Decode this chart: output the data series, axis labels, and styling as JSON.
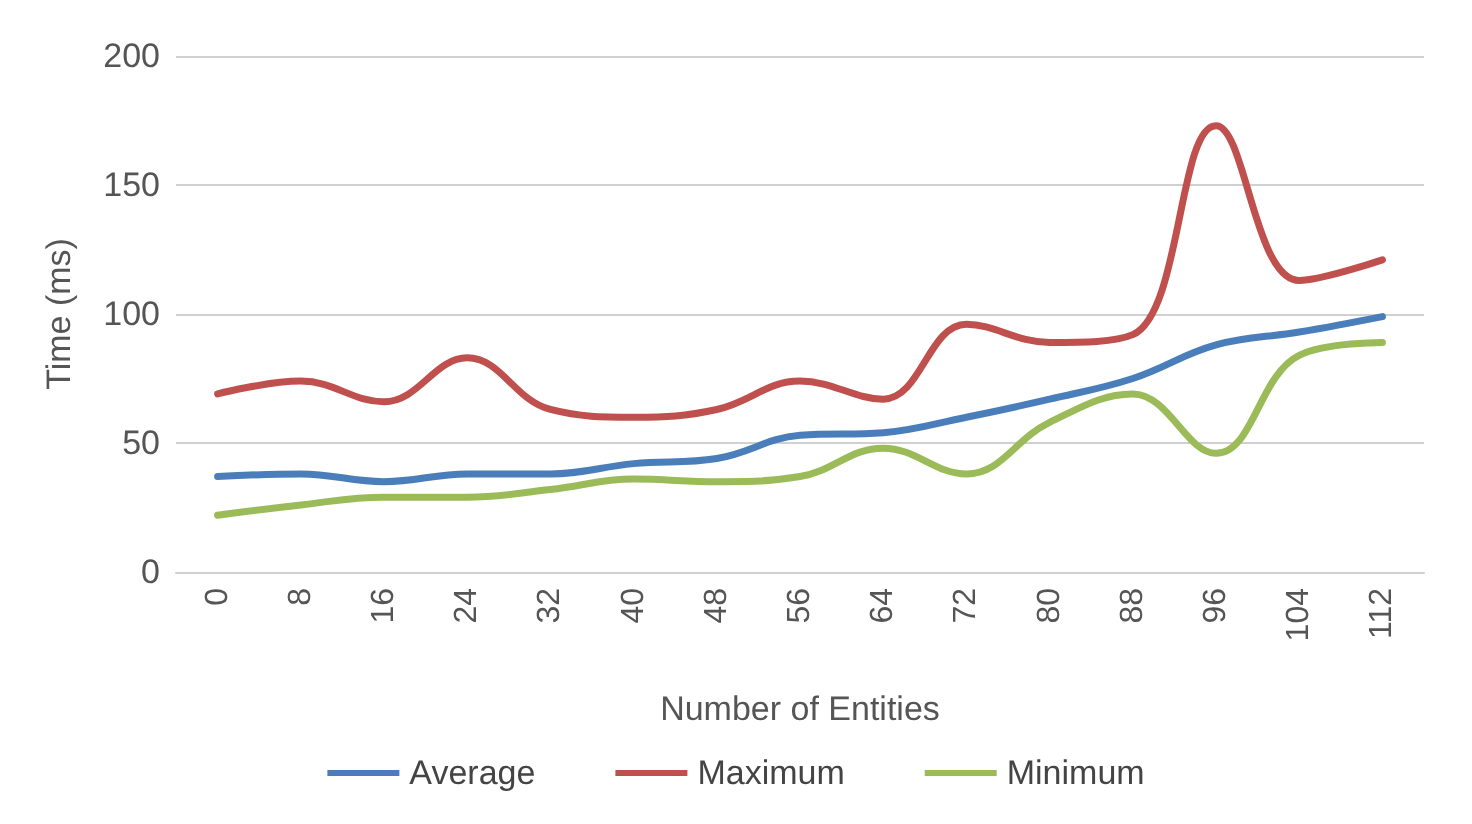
{
  "chart_data": {
    "type": "line",
    "xlabel": "Number of Entities",
    "ylabel": "Time (ms)",
    "categories": [
      "0",
      "8",
      "16",
      "24",
      "32",
      "40",
      "48",
      "56",
      "64",
      "72",
      "80",
      "88",
      "96",
      "104",
      "112"
    ],
    "series": [
      {
        "name": "Average",
        "color": "#4a7ebb",
        "values": [
          37,
          38,
          35,
          38,
          38,
          42,
          44,
          53,
          54,
          60,
          67,
          75,
          88,
          93,
          99
        ]
      },
      {
        "name": "Maximum",
        "color": "#c0504d",
        "values": [
          69,
          74,
          66,
          83,
          63,
          60,
          63,
          74,
          67,
          96,
          89,
          92,
          173,
          113,
          121
        ]
      },
      {
        "name": "Minimum",
        "color": "#9bbb59",
        "values": [
          22,
          26,
          29,
          29,
          32,
          36,
          35,
          37,
          48,
          38,
          58,
          69,
          46,
          84,
          89
        ]
      }
    ],
    "ylim": [
      0,
      200
    ],
    "yticks": [
      0,
      50,
      100,
      150,
      200
    ],
    "grid": "y",
    "legend": "bottom",
    "marker": "none",
    "line_style": "solid"
  }
}
